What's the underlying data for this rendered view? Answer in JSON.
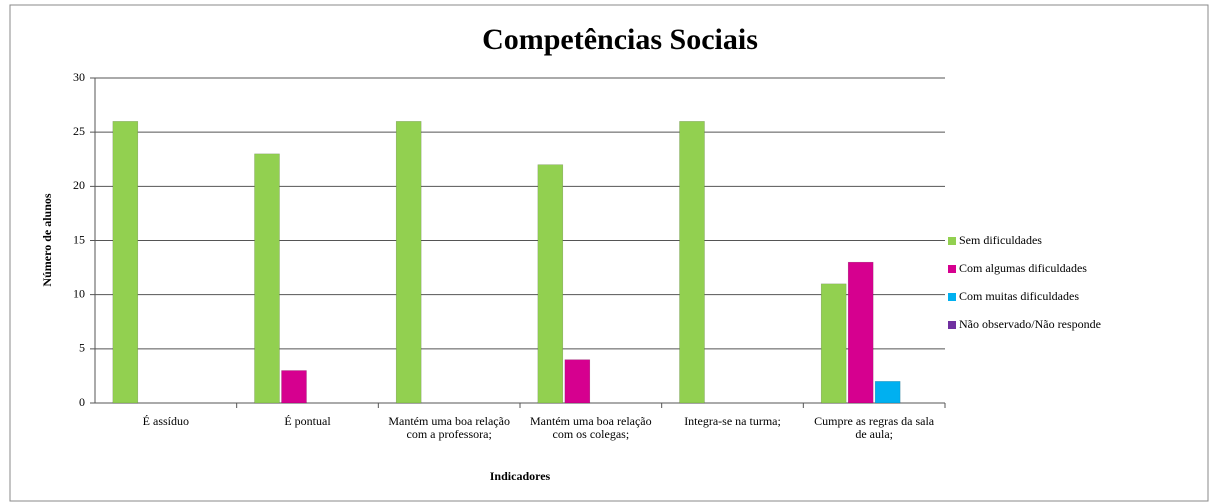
{
  "chart_data": {
    "type": "bar",
    "title": "Competências Sociais",
    "categories": [
      "É assíduo",
      "É pontual",
      "Mantém uma boa relação com a professora;",
      "Mantém uma boa relação com os colegas;",
      "Integra-se na turma;",
      "Cumpre as regras da sala de aula;"
    ],
    "series": [
      {
        "name": "Sem dificuldades",
        "color": "#92d050",
        "values": [
          26,
          23,
          26,
          22,
          26,
          11
        ]
      },
      {
        "name": "Com algumas dificuldades",
        "color": "#d6008f",
        "values": [
          0,
          3,
          0,
          4,
          0,
          13
        ]
      },
      {
        "name": "Com muitas dificuldades",
        "color": "#00b0f0",
        "values": [
          0,
          0,
          0,
          0,
          0,
          2
        ]
      },
      {
        "name": "Não observado/Não responde",
        "color": "#7030a0",
        "values": [
          0,
          0,
          0,
          0,
          0,
          0
        ]
      }
    ],
    "x_label": "Indicadores",
    "y_label": "Número de alunos",
    "ylim": [
      0,
      30
    ],
    "yticks": [
      0,
      5,
      10,
      15,
      20,
      25,
      30
    ],
    "grid": true,
    "legend": "right"
  }
}
